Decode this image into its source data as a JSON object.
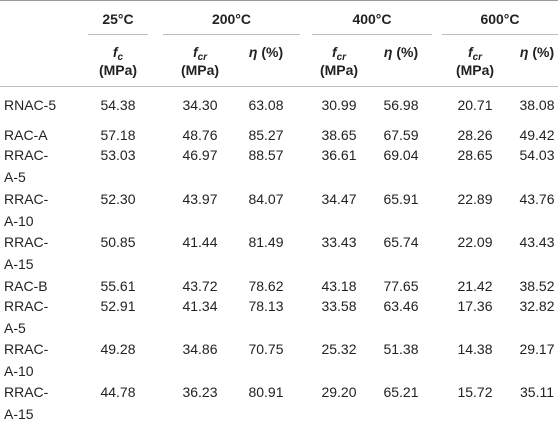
{
  "table": {
    "groups": [
      "25°C",
      "200°C",
      "400°C",
      "600°C"
    ],
    "subheaders": [
      {
        "sym": "f",
        "sub": "c",
        "unit": "(MPa)"
      },
      {
        "sym": "f",
        "sub": "cr",
        "unit": "(MPa)"
      },
      {
        "sym": "η",
        "sub": "",
        "unit": "(%)"
      },
      {
        "sym": "f",
        "sub": "cr",
        "unit": "(MPa)"
      },
      {
        "sym": "η",
        "sub": "",
        "unit": "(%)"
      },
      {
        "sym": "f",
        "sub": "cr",
        "unit": "(MPa)"
      },
      {
        "sym": "η",
        "sub": "",
        "unit": "(%)"
      }
    ],
    "rows": [
      {
        "name": [
          "RNAC-5"
        ],
        "vals": [
          "54.38",
          "34.30",
          "63.08",
          "30.99",
          "56.98",
          "20.71",
          "38.08"
        ]
      },
      {
        "name": [
          "RAC-A"
        ],
        "vals": [
          "57.18",
          "48.76",
          "85.27",
          "38.65",
          "67.59",
          "28.26",
          "49.42"
        ]
      },
      {
        "name": [
          "RRAC-",
          "A-5"
        ],
        "vals": [
          "53.03",
          "46.97",
          "88.57",
          "36.61",
          "69.04",
          "28.65",
          "54.03"
        ]
      },
      {
        "name": [
          "RRAC-",
          "A-10"
        ],
        "vals": [
          "52.30",
          "43.97",
          "84.07",
          "34.47",
          "65.91",
          "22.89",
          "43.76"
        ]
      },
      {
        "name": [
          "RRAC-",
          "A-15"
        ],
        "vals": [
          "50.85",
          "41.44",
          "81.49",
          "33.43",
          "65.74",
          "22.09",
          "43.43"
        ]
      },
      {
        "name": [
          "RAC-B"
        ],
        "vals": [
          "55.61",
          "43.72",
          "78.62",
          "43.18",
          "77.65",
          "21.42",
          "38.52"
        ]
      },
      {
        "name": [
          "RRAC-",
          "A-5"
        ],
        "vals": [
          "52.91",
          "41.34",
          "78.13",
          "33.58",
          "63.46",
          "17.36",
          "32.82"
        ]
      },
      {
        "name": [
          "RRAC-",
          "A-10"
        ],
        "vals": [
          "49.28",
          "34.86",
          "70.75",
          "25.32",
          "51.38",
          "14.38",
          "29.17"
        ]
      },
      {
        "name": [
          "RRAC-",
          "A-15"
        ],
        "vals": [
          "44.78",
          "36.23",
          "80.91",
          "29.20",
          "65.21",
          "15.72",
          "35.11"
        ]
      }
    ]
  }
}
